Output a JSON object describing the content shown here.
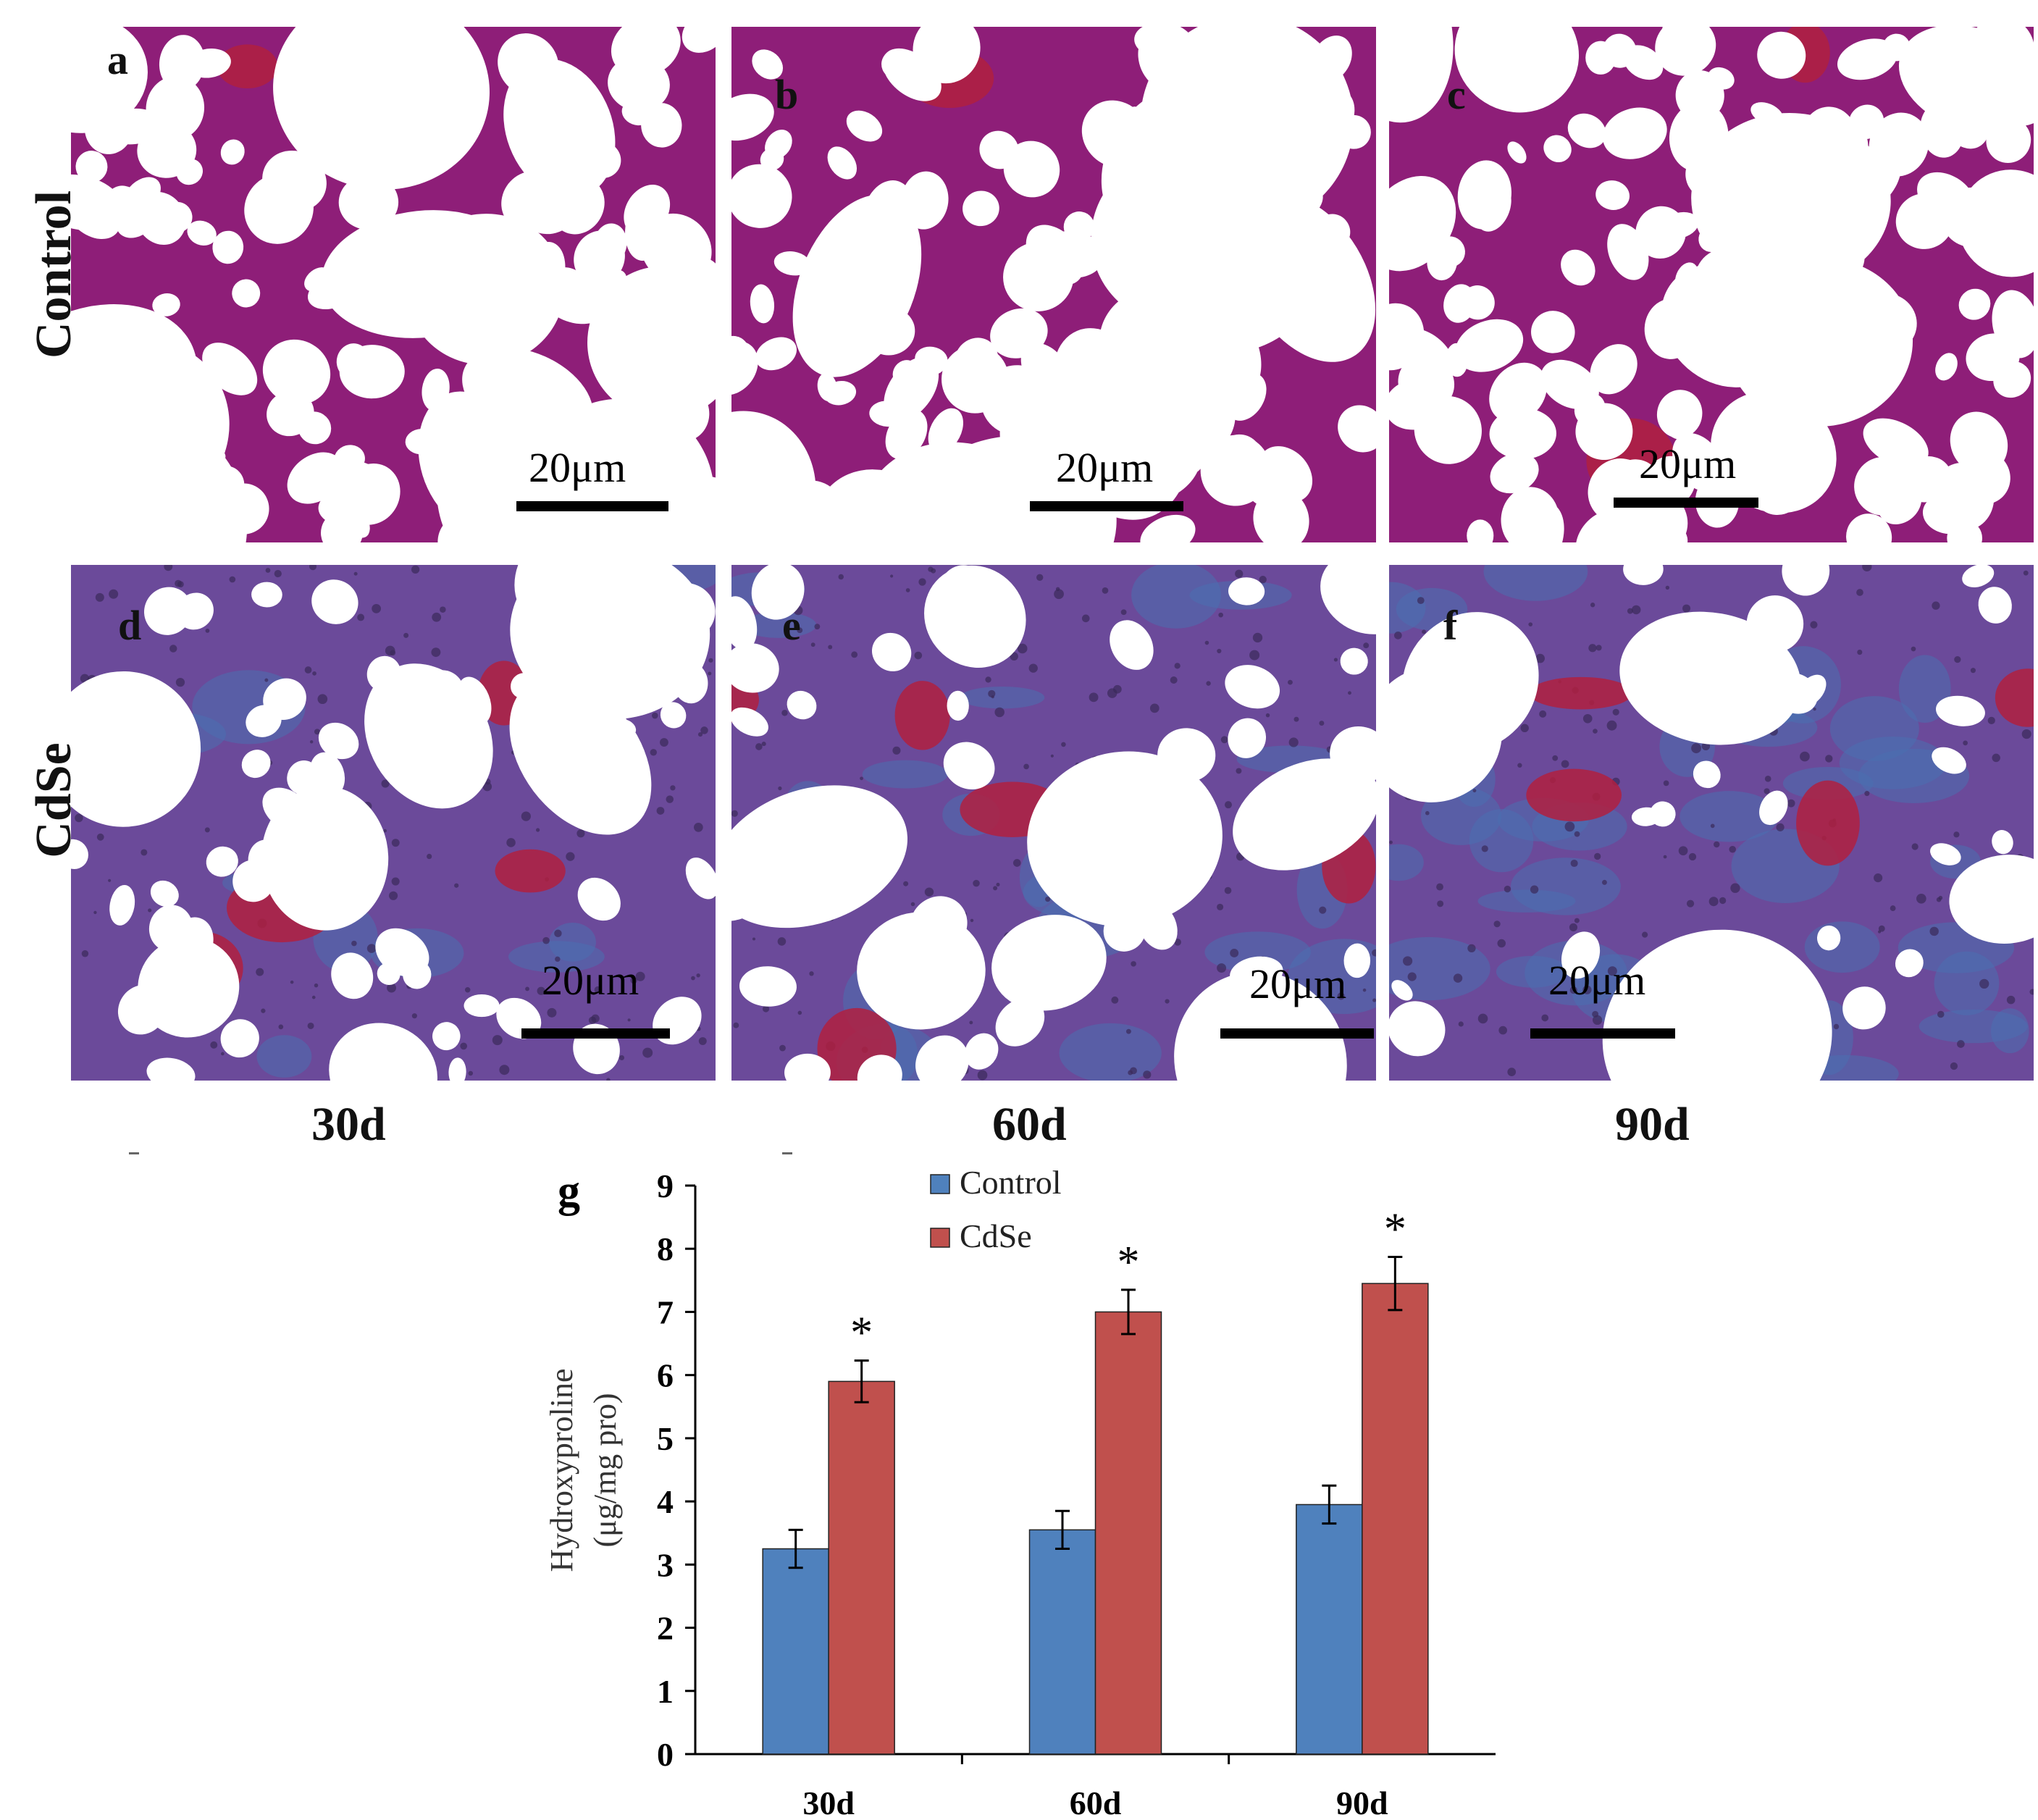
{
  "row_labels": [
    "Control",
    "CdSe"
  ],
  "column_labels": [
    "30d",
    "60d",
    "90d"
  ],
  "panels": [
    {
      "letter": "a",
      "scale": "20μm"
    },
    {
      "letter": "b",
      "scale": "20μm"
    },
    {
      "letter": "c",
      "scale": "20μm"
    },
    {
      "letter": "d",
      "scale": "20μm"
    },
    {
      "letter": "e",
      "scale": "20μm"
    },
    {
      "letter": "f",
      "scale": "20μm"
    }
  ],
  "colors": {
    "control_tissue": "#8e1e78",
    "cdse_tissue": "#6b4a9a",
    "fibrosis_blue": "#4a6fb0",
    "blood_red": "#b02040",
    "control_bar": "#4f81bd",
    "cdse_bar": "#c0504d"
  },
  "chart_data": {
    "type": "bar",
    "panel_letter": "g",
    "categories": [
      "30d",
      "60d",
      "90d"
    ],
    "series": [
      {
        "name": "Control",
        "values": [
          3.25,
          3.55,
          3.95
        ],
        "errors": [
          0.3,
          0.3,
          0.3
        ],
        "color": "#4f81bd"
      },
      {
        "name": "CdSe",
        "values": [
          5.9,
          7.0,
          7.45
        ],
        "errors": [
          0.33,
          0.35,
          0.42
        ],
        "color": "#c0504d"
      }
    ],
    "significance": [
      "*",
      "*",
      "*"
    ],
    "ylabel_lines": [
      "Hydroxyproline",
      "(μg/mg pro)"
    ],
    "ylim": [
      0,
      9
    ],
    "yticks": [
      "0",
      "1",
      "2",
      "3",
      "4",
      "5",
      "6",
      "7",
      "8",
      "9"
    ],
    "legend_position": "top-center",
    "grid": false
  }
}
